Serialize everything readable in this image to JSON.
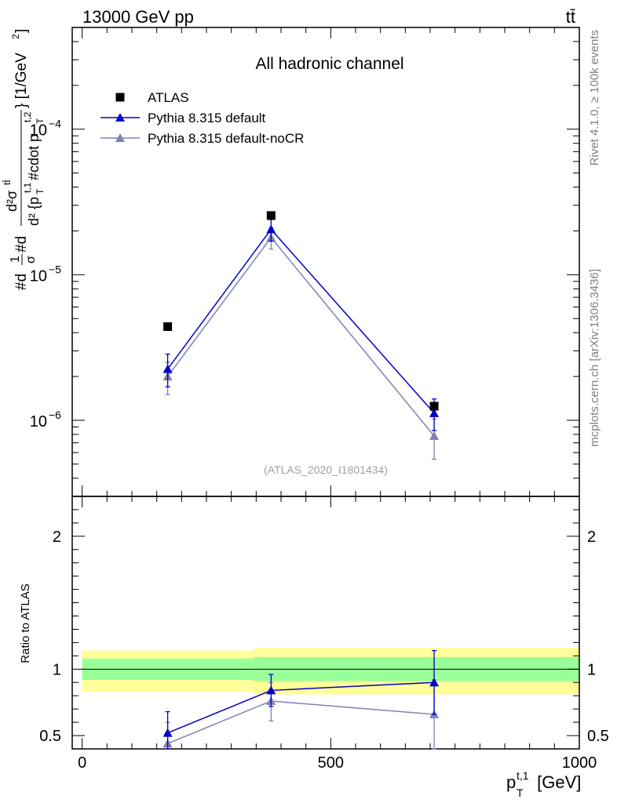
{
  "header": {
    "process": "13000 GeV pp",
    "particle": "tt̄"
  },
  "side_labels": {
    "rivet": "Rivet 4.1.0, ≥ 100k events",
    "mcplots": "mcplots.cern.ch [arXiv:1306.3436]"
  },
  "chart_data": [
    {
      "type": "scatter",
      "panel": "main",
      "title": "All hadronic channel",
      "analysis_id": "(ATLAS_2020_I1801434)",
      "ylabel": "#d1̅σ#d d²σ^{tt̄} / d²{p_T^{t,1} #cdot p_T^{t,2}} [1/GeV²]",
      "ylabel_parts": {
        "front": "#d",
        "frac_num": "1",
        "frac_den": "σ",
        "mid": "#d",
        "num": "d²σ",
        "num_sup": "tt̄",
        "den": "d² {p",
        "den_sub1": "T",
        "den_sup1": "t,1",
        "den_mid": " #cdot p",
        "den_sub2": "T",
        "den_sup2": "t,2",
        "tail": "} [1/GeV",
        "tail_sup": "2",
        "tail_end": "]"
      },
      "yscale": "log",
      "ylim": [
        3e-07,
        0.0005
      ],
      "xlim": [
        -20,
        1000
      ],
      "y_tick_labels": [
        {
          "value": 1e-06,
          "base": "10",
          "exp": "−6"
        },
        {
          "value": 1e-05,
          "base": "10",
          "exp": "−5"
        },
        {
          "value": 0.0001,
          "base": "10",
          "exp": "−4"
        }
      ],
      "legend": {
        "position": "top-left",
        "entries": [
          {
            "label": "ATLAS",
            "color": "#000000",
            "marker": "square"
          },
          {
            "label": "Pythia 8.315 default",
            "color": "#0000cc",
            "marker": "triangle"
          },
          {
            "label": "Pythia 8.315 default-noCR",
            "color": "#8080b3",
            "marker": "triangle"
          }
        ]
      },
      "series": [
        {
          "name": "ATLAS",
          "color": "#000000",
          "marker": "square",
          "line": false,
          "points": [
            {
              "x": 172,
              "y": 4.4e-06,
              "ylo": 4.4e-06,
              "yhi": 4.4e-06
            },
            {
              "x": 380,
              "y": 2.55e-05,
              "ylo": 2.55e-05,
              "yhi": 2.55e-05
            },
            {
              "x": 708,
              "y": 1.25e-06,
              "ylo": 1.2e-06,
              "yhi": 1.3e-06
            }
          ]
        },
        {
          "name": "Pythia 8.315 default",
          "color": "#0000cc",
          "marker": "triangle",
          "line": true,
          "points": [
            {
              "x": 172,
              "y": 2.25e-06,
              "ylo": 1.7e-06,
              "yhi": 2.85e-06
            },
            {
              "x": 380,
              "y": 2.05e-05,
              "ylo": 1.7e-05,
              "yhi": 2.4e-05
            },
            {
              "x": 708,
              "y": 1.12e-06,
              "ylo": 8.5e-07,
              "yhi": 1.4e-06
            }
          ]
        },
        {
          "name": "Pythia 8.315 default-noCR",
          "color": "#8080b3",
          "marker": "triangle",
          "line": true,
          "points": [
            {
              "x": 172,
              "y": 2e-06,
              "ylo": 1.5e-06,
              "yhi": 2.5e-06
            },
            {
              "x": 380,
              "y": 1.8e-05,
              "ylo": 1.5e-05,
              "yhi": 2.1e-05
            },
            {
              "x": 708,
              "y": 7.8e-07,
              "ylo": 5.4e-07,
              "yhi": 1.02e-06
            }
          ]
        }
      ]
    },
    {
      "type": "scatter",
      "panel": "ratio",
      "ylabel": "Ratio to ATLAS",
      "xlabel_base": "p",
      "xlabel_sub": "T",
      "xlabel_sup": "t,1",
      "xlabel_unit": " [GeV]",
      "yscale": "linear",
      "ylim": [
        0.4,
        2.3
      ],
      "xlim": [
        -20,
        1000
      ],
      "x_ticks": [
        0,
        500,
        1000
      ],
      "x_tick_labels": [
        "0",
        "500",
        "1000"
      ],
      "y_ticks": [
        0.5,
        1,
        2
      ],
      "y_tick_labels": [
        "0.5",
        "1",
        "2"
      ],
      "reference_line": 1.0,
      "bands": [
        {
          "xmin": 0,
          "xmax": 345,
          "inner_lo": 0.92,
          "inner_hi": 1.08,
          "outer_lo": 0.83,
          "outer_hi": 1.14
        },
        {
          "xmin": 345,
          "xmax": 1000,
          "inner_lo": 0.91,
          "inner_hi": 1.09,
          "outer_lo": 0.81,
          "outer_hi": 1.16
        }
      ],
      "band_colors": {
        "inner": "#99ff99",
        "outer": "#ffff99"
      },
      "series": [
        {
          "name": "Pythia 8.315 default",
          "color": "#0000cc",
          "marker": "triangle",
          "points": [
            {
              "x": 172,
              "y": 0.52,
              "ylo": 0.36,
              "yhi": 0.68
            },
            {
              "x": 380,
              "y": 0.84,
              "ylo": 0.72,
              "yhi": 0.96
            },
            {
              "x": 708,
              "y": 0.9,
              "ylo": 0.66,
              "yhi": 1.14
            }
          ]
        },
        {
          "name": "Pythia 8.315 default-noCR",
          "color": "#8080b3",
          "marker": "triangle",
          "points": [
            {
              "x": 172,
              "y": 0.44,
              "ylo": 0.3,
              "yhi": 0.6
            },
            {
              "x": 380,
              "y": 0.76,
              "ylo": 0.61,
              "yhi": 0.9
            },
            {
              "x": 708,
              "y": 0.66,
              "ylo": 0.39,
              "yhi": 0.92
            }
          ]
        }
      ]
    }
  ]
}
